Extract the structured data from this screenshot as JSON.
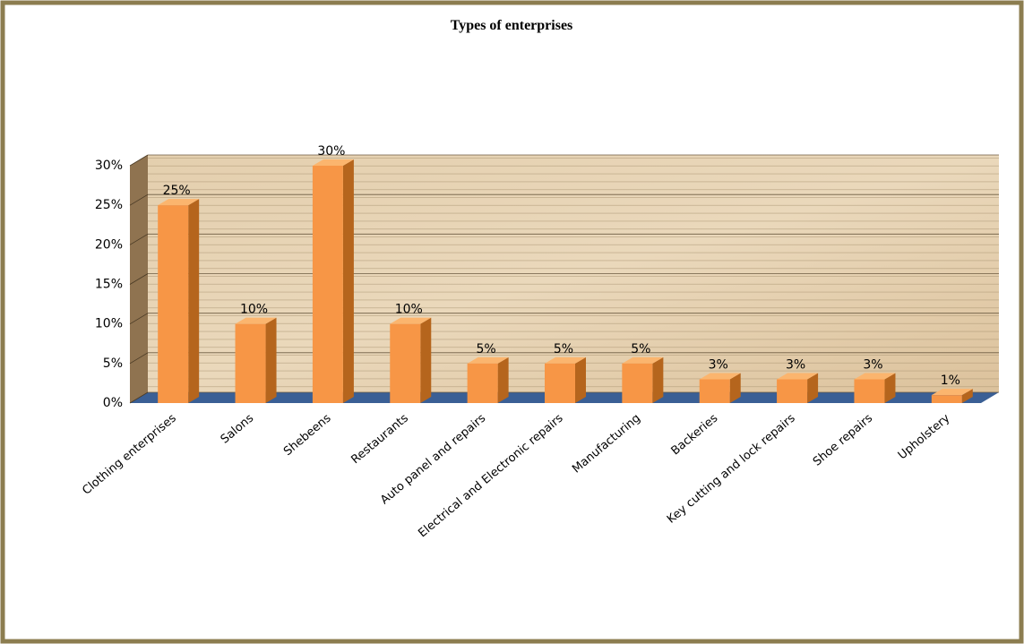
{
  "chart_data": {
    "type": "bar3d",
    "title": "Types of enterprises",
    "categories": [
      "Clothing enterprises",
      "Salons",
      "Shebeens",
      "Restaurants",
      "Auto panel and repairs",
      "Electrical and Electronic repairs",
      "Manufacturing",
      "Backeries",
      "Key cutting and lock repairs",
      "Shoe repairs",
      "Upholstery"
    ],
    "values": [
      25,
      10,
      30,
      10,
      5,
      5,
      5,
      3,
      3,
      3,
      1
    ],
    "value_labels": [
      "25%",
      "10%",
      "30%",
      "10%",
      "5%",
      "5%",
      "5%",
      "3%",
      "3%",
      "3%",
      "1%"
    ],
    "color": "#f79646",
    "ylim": [
      0,
      30
    ],
    "yticks": [
      {
        "value": 0,
        "label": "0%"
      },
      {
        "value": 5,
        "label": "5%"
      },
      {
        "value": 10,
        "label": "10%"
      },
      {
        "value": 15,
        "label": "15%"
      },
      {
        "value": 20,
        "label": "20%"
      },
      {
        "value": 25,
        "label": "25%"
      },
      {
        "value": 30,
        "label": "30%"
      }
    ],
    "grid": true
  }
}
